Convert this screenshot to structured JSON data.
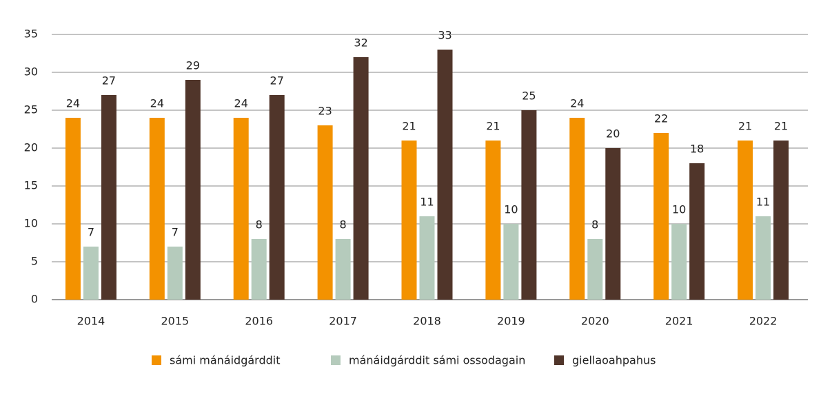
{
  "chart_data": {
    "type": "bar",
    "categories": [
      "2014",
      "2015",
      "2016",
      "2017",
      "2018",
      "2019",
      "2020",
      "2021",
      "2022"
    ],
    "series": [
      {
        "name": "sámi mánáidgárddit",
        "color": "#f39200",
        "values": [
          24,
          24,
          24,
          23,
          21,
          21,
          24,
          22,
          21
        ]
      },
      {
        "name": "mánáidgárddit sámi ossodagain",
        "color": "#b5cbbc",
        "values": [
          7,
          7,
          8,
          8,
          11,
          10,
          8,
          10,
          11
        ]
      },
      {
        "name": "giellaoahpahus",
        "color": "#50352a",
        "values": [
          27,
          29,
          27,
          32,
          33,
          25,
          20,
          18,
          21
        ]
      }
    ],
    "ylim": [
      0,
      35
    ],
    "yticks": [
      0,
      5,
      10,
      15,
      20,
      25,
      30,
      35
    ],
    "grid": true,
    "legend": "bottom"
  }
}
